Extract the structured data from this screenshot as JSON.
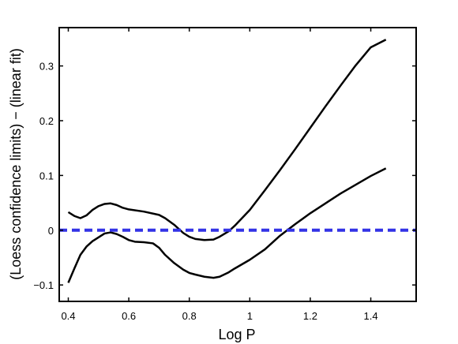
{
  "chart_data": {
    "type": "line",
    "title": "",
    "xlabel": "Log P",
    "ylabel": "(Loess confidence limits) − (linear fit)",
    "xlim": [
      0.37,
      1.55
    ],
    "ylim": [
      -0.13,
      0.37
    ],
    "x_ticks": [
      0.4,
      0.6,
      0.8,
      1.0,
      1.2,
      1.4
    ],
    "x_tick_labels": [
      "0.4",
      "0.6",
      "0.8",
      "1",
      "1.2",
      "1.4"
    ],
    "y_ticks": [
      -0.1,
      0,
      0.1,
      0.2,
      0.3
    ],
    "y_tick_labels": [
      "−0.1",
      "0",
      "0.1",
      "0.2",
      "0.3"
    ],
    "grid": false,
    "series": [
      {
        "color": "#000000",
        "style": "solid",
        "x": [
          0.4,
          0.42,
          0.44,
          0.46,
          0.48,
          0.5,
          0.52,
          0.54,
          0.56,
          0.58,
          0.6,
          0.65,
          0.7,
          0.72,
          0.75,
          0.78,
          0.8,
          0.82,
          0.85,
          0.88,
          0.9,
          0.93,
          0.95,
          1.0,
          1.05,
          1.1,
          1.15,
          1.2,
          1.25,
          1.3,
          1.35,
          1.4,
          1.45
        ],
        "y": [
          0.033,
          0.026,
          0.022,
          0.027,
          0.037,
          0.044,
          0.048,
          0.049,
          0.046,
          0.041,
          0.038,
          0.034,
          0.028,
          0.022,
          0.01,
          -0.005,
          -0.012,
          -0.016,
          -0.018,
          -0.017,
          -0.012,
          -0.002,
          0.008,
          0.037,
          0.073,
          0.11,
          0.148,
          0.187,
          0.226,
          0.264,
          0.301,
          0.334,
          0.348
        ]
      },
      {
        "color": "#000000",
        "style": "solid",
        "x": [
          0.4,
          0.42,
          0.44,
          0.46,
          0.48,
          0.5,
          0.52,
          0.54,
          0.56,
          0.58,
          0.6,
          0.62,
          0.65,
          0.68,
          0.7,
          0.72,
          0.75,
          0.78,
          0.8,
          0.82,
          0.85,
          0.88,
          0.9,
          0.93,
          0.95,
          1.0,
          1.05,
          1.1,
          1.15,
          1.2,
          1.25,
          1.3,
          1.35,
          1.4,
          1.45
        ],
        "y": [
          -0.096,
          -0.07,
          -0.045,
          -0.03,
          -0.02,
          -0.013,
          -0.006,
          -0.004,
          -0.007,
          -0.012,
          -0.018,
          -0.021,
          -0.022,
          -0.024,
          -0.032,
          -0.045,
          -0.06,
          -0.072,
          -0.078,
          -0.081,
          -0.085,
          -0.087,
          -0.085,
          -0.077,
          -0.07,
          -0.054,
          -0.035,
          -0.01,
          0.011,
          0.031,
          0.049,
          0.067,
          0.083,
          0.099,
          0.113
        ]
      },
      {
        "color": "#3333e6",
        "style": "dashed",
        "x": [
          0.37,
          1.55
        ],
        "y": [
          0,
          0
        ]
      }
    ]
  }
}
